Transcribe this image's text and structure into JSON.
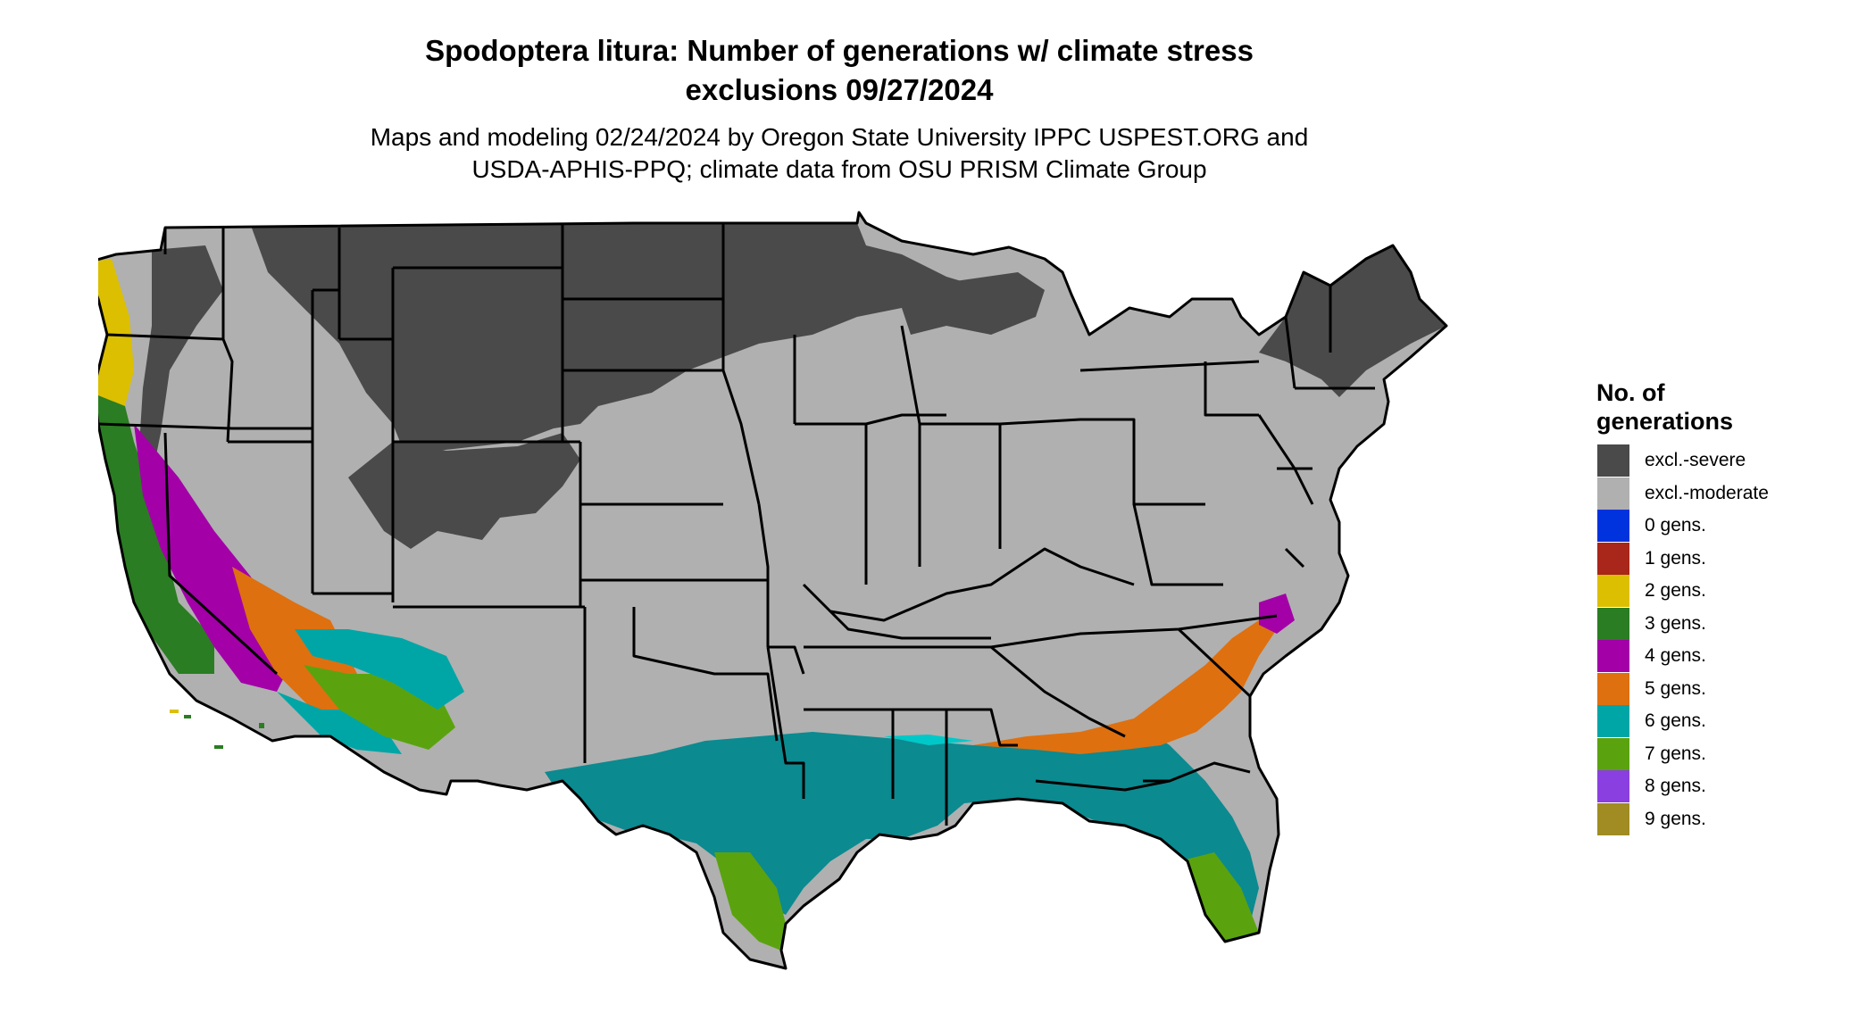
{
  "title": {
    "line1": "Spodoptera litura: Number of generations w/ climate stress",
    "line2": "exclusions 09/27/2024"
  },
  "subtitle": {
    "line1": "Maps and modeling 02/24/2024 by Oregon State University IPPC USPEST.ORG and",
    "line2": "USDA-APHIS-PPQ; climate data from OSU PRISM Climate Group"
  },
  "legend": {
    "title_line1": "No. of",
    "title_line2": "generations",
    "items": [
      {
        "label": "excl.-severe",
        "color": "#4a4a4a"
      },
      {
        "label": "excl.-moderate",
        "color": "#b0b0b0"
      },
      {
        "label": "0 gens.",
        "color": "#0033dd"
      },
      {
        "label": "1 gens.",
        "color": "#a8261a"
      },
      {
        "label": "2 gens.",
        "color": "#dcbf00"
      },
      {
        "label": "3 gens.",
        "color": "#2a7d22"
      },
      {
        "label": "4 gens.",
        "color": "#a300a8"
      },
      {
        "label": "5 gens.",
        "color": "#de7010"
      },
      {
        "label": "6 gens.",
        "color": "#00a6a6"
      },
      {
        "label": "7 gens.",
        "color": "#5aa30f"
      },
      {
        "label": "8 gens.",
        "color": "#8a40e0"
      },
      {
        "label": "9 gens.",
        "color": "#a08c22"
      }
    ]
  },
  "map": {
    "colors": {
      "severe": "#4a4a4a",
      "moderate": "#b0b0b0",
      "gen2": "#dcbf00",
      "gen3": "#2a7d22",
      "gen4": "#a300a8",
      "gen5": "#de7010",
      "gen6": "#00a6a6",
      "gen6_gulf": "#0b8a90",
      "gen7": "#5aa30f",
      "gen8": "#8a40e0",
      "border": "#000000"
    }
  }
}
